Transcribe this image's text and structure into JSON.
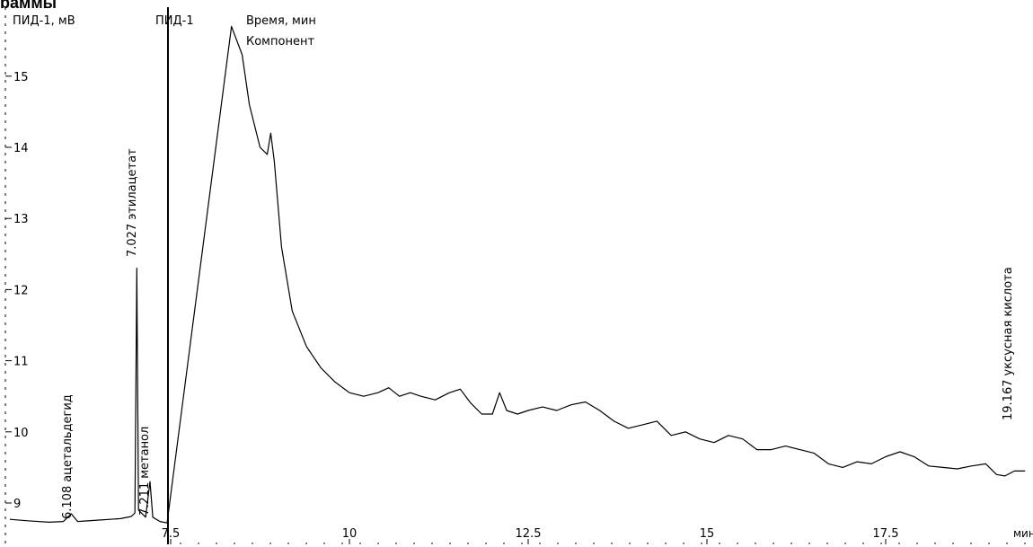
{
  "header": {
    "title_fragment": "раммы"
  },
  "legend_header": {
    "detector_units": "ПИД-1, мВ",
    "channel": "ПИД-1",
    "time_label": "Время, мин",
    "component_label": "Компонент"
  },
  "chart_data": {
    "type": "line",
    "title": "",
    "ylabel": "ПИД-1, мВ",
    "xlabel": "мин",
    "ylim": [
      8.6,
      15.9
    ],
    "xlim": [
      5.25,
      19.5
    ],
    "x_ticks": [
      {
        "value": 7.5,
        "label": "7.5"
      },
      {
        "value": 10,
        "label": "10"
      },
      {
        "value": 12.5,
        "label": "12.5"
      },
      {
        "value": 15,
        "label": "15"
      },
      {
        "value": 17.5,
        "label": "17.5"
      }
    ],
    "x_unit_label": "мин",
    "y_ticks": [
      {
        "value": 9,
        "label": "9"
      },
      {
        "value": 10,
        "label": "10"
      },
      {
        "value": 11,
        "label": "11"
      },
      {
        "value": 12,
        "label": "12"
      },
      {
        "value": 13,
        "label": "13"
      },
      {
        "value": 14,
        "label": "14"
      },
      {
        "value": 15,
        "label": "15"
      }
    ],
    "series": [
      {
        "color": "#000000",
        "x": [
          5.25,
          5.5,
          5.8,
          6.0,
          6.108,
          6.2,
          6.5,
          6.8,
          6.95,
          7.0,
          7.027,
          7.05,
          7.1,
          7.15,
          7.211,
          7.25,
          7.35,
          7.45,
          8.35,
          8.5,
          8.6,
          8.75,
          8.85,
          8.9,
          8.95,
          9.05,
          9.2,
          9.4,
          9.6,
          9.8,
          10.0,
          10.2,
          10.4,
          10.55,
          10.7,
          10.85,
          11.0,
          11.2,
          11.4,
          11.55,
          11.7,
          11.85,
          12.0,
          12.1,
          12.2,
          12.35,
          12.5,
          12.7,
          12.9,
          13.1,
          13.3,
          13.5,
          13.7,
          13.9,
          14.1,
          14.3,
          14.5,
          14.7,
          14.9,
          15.1,
          15.3,
          15.5,
          15.7,
          15.9,
          16.1,
          16.3,
          16.5,
          16.7,
          16.9,
          17.1,
          17.3,
          17.5,
          17.7,
          17.9,
          18.1,
          18.3,
          18.5,
          18.7,
          18.9,
          19.05,
          19.167,
          19.3,
          19.45
        ],
        "y": [
          8.77,
          8.75,
          8.73,
          8.74,
          8.85,
          8.74,
          8.76,
          8.78,
          8.81,
          8.86,
          12.3,
          8.9,
          8.85,
          8.8,
          9.3,
          8.8,
          8.74,
          8.72,
          15.7,
          15.3,
          14.6,
          14.0,
          13.9,
          14.2,
          13.8,
          12.6,
          11.7,
          11.2,
          10.9,
          10.7,
          10.55,
          10.5,
          10.55,
          10.62,
          10.5,
          10.55,
          10.5,
          10.45,
          10.55,
          10.6,
          10.4,
          10.25,
          10.25,
          10.55,
          10.3,
          10.25,
          10.3,
          10.35,
          10.3,
          10.38,
          10.42,
          10.3,
          10.15,
          10.05,
          10.1,
          10.15,
          9.95,
          10.0,
          9.9,
          9.85,
          9.95,
          9.9,
          9.75,
          9.75,
          9.8,
          9.75,
          9.7,
          9.55,
          9.5,
          9.58,
          9.55,
          9.65,
          9.72,
          9.65,
          9.52,
          9.5,
          9.48,
          9.52,
          9.55,
          9.4,
          9.38,
          9.45,
          9.45
        ]
      }
    ],
    "annotations": [
      {
        "time": "6.108",
        "name": "ацетальдегид",
        "x": 6.108
      },
      {
        "time": "7.027",
        "name": "этилацетат",
        "x": 7.027
      },
      {
        "time": "7.211",
        "name": "метанол",
        "x": 7.211
      },
      {
        "time": "19.167",
        "name": "уксусная кислота",
        "x": 19.167
      }
    ],
    "grid": false
  }
}
